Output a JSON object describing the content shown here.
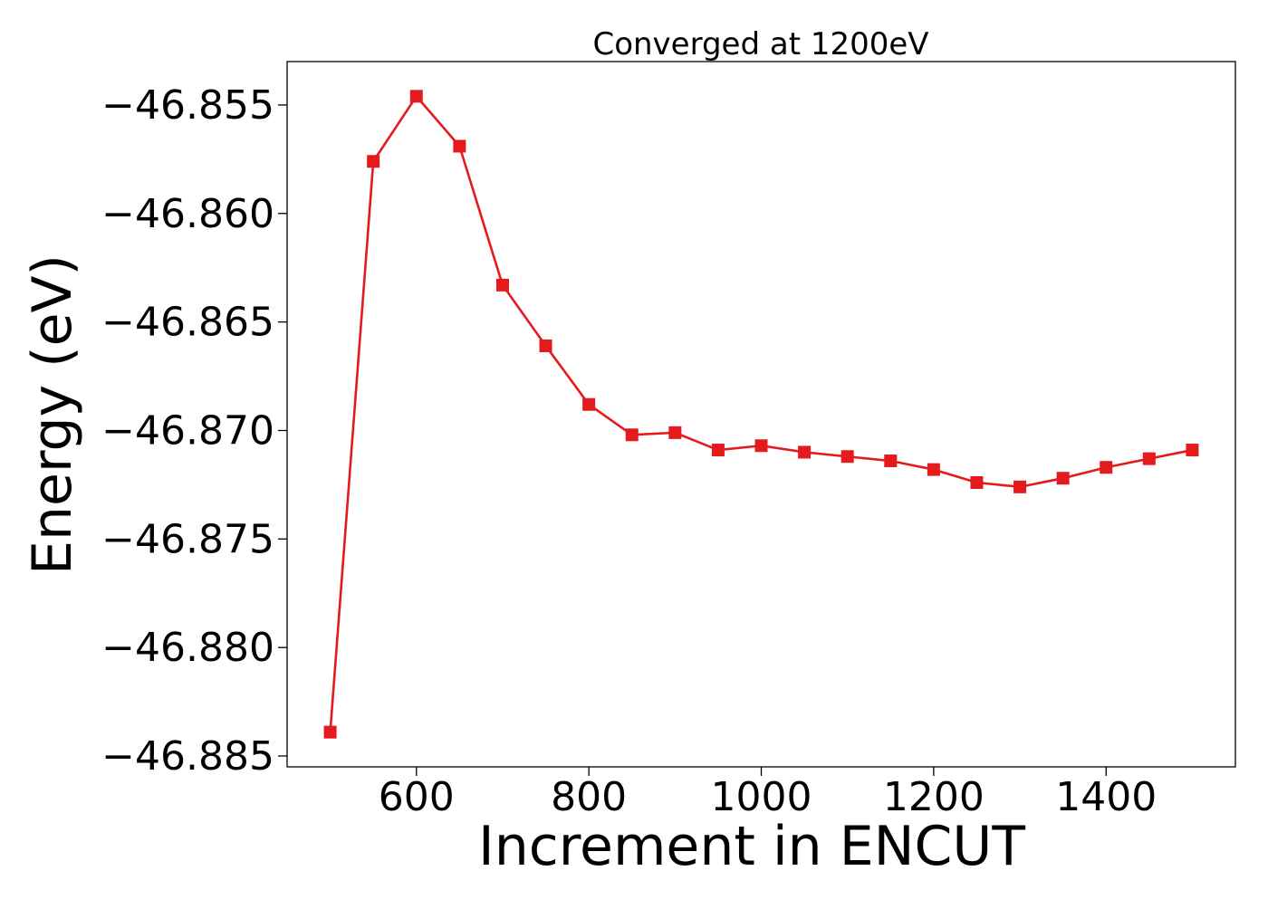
{
  "chart_data": {
    "type": "line",
    "title": "Converged at 1200eV",
    "xlabel": "Increment in ENCUT",
    "ylabel": "Energy (eV)",
    "xlim": [
      450,
      1550
    ],
    "ylim": [
      -46.8855,
      -46.853
    ],
    "xticks": [
      600,
      800,
      1000,
      1200,
      1400
    ],
    "xtick_labels": [
      "600",
      "800",
      "1000",
      "1200",
      "1400"
    ],
    "yticks": [
      -46.855,
      -46.86,
      -46.865,
      -46.87,
      -46.875,
      -46.88,
      -46.885
    ],
    "ytick_labels": [
      "−46.855",
      "−46.860",
      "−46.865",
      "−46.870",
      "−46.875",
      "−46.880",
      "−46.885"
    ],
    "grid": false,
    "legend": "none",
    "series": [
      {
        "color": "#e41a1c",
        "marker": "square",
        "x": [
          500,
          550,
          600,
          650,
          700,
          750,
          800,
          850,
          900,
          950,
          1000,
          1050,
          1100,
          1150,
          1200,
          1250,
          1300,
          1350,
          1400,
          1450,
          1500
        ],
        "y": [
          -46.8839,
          -46.8576,
          -46.8546,
          -46.8569,
          -46.8633,
          -46.8661,
          -46.8688,
          -46.8702,
          -46.8701,
          -46.8709,
          -46.8707,
          -46.871,
          -46.8712,
          -46.8714,
          -46.8718,
          -46.8724,
          -46.8726,
          -46.8722,
          -46.8717,
          -46.8713,
          -46.8709
        ]
      }
    ]
  }
}
